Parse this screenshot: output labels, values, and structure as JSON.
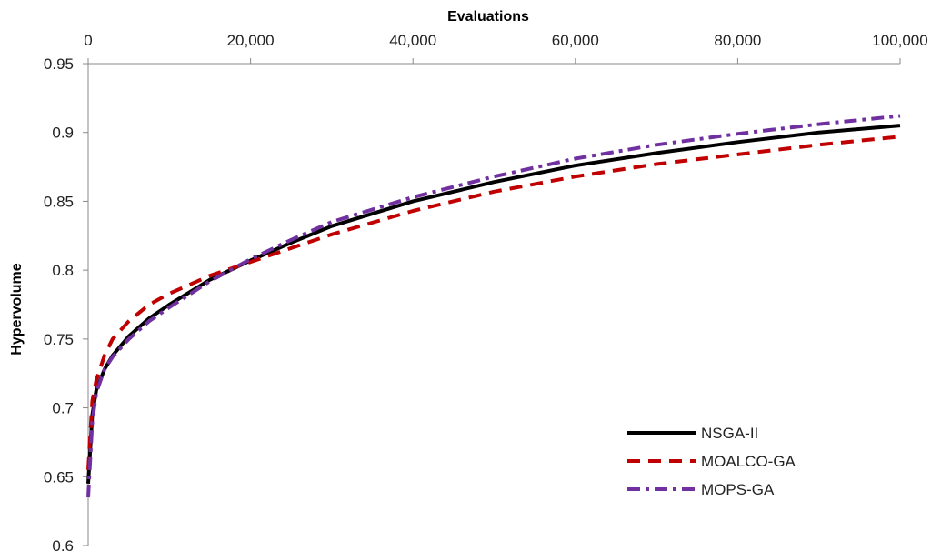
{
  "chart_data": {
    "type": "line",
    "title": "",
    "xlabel": "Evaluations",
    "ylabel": "Hypervolume",
    "xlim": [
      0,
      100000
    ],
    "ylim": [
      0.6,
      0.95
    ],
    "x_axis_position": "top",
    "grid": false,
    "legend_position": "bottom-right",
    "x_ticks": [
      0,
      20000,
      40000,
      60000,
      80000,
      100000
    ],
    "x_tick_labels": [
      "0",
      "20,000",
      "40,000",
      "60,000",
      "80,000",
      "100,000"
    ],
    "y_ticks": [
      0.6,
      0.65,
      0.7,
      0.75,
      0.8,
      0.85,
      0.9,
      0.95
    ],
    "y_tick_labels": [
      "0.6",
      "0.65",
      "0.7",
      "0.75",
      "0.8",
      "0.85",
      "0.9",
      "0.95"
    ],
    "x": [
      0,
      500,
      1000,
      2000,
      3000,
      5000,
      7500,
      10000,
      15000,
      20000,
      25000,
      30000,
      40000,
      50000,
      60000,
      70000,
      80000,
      90000,
      100000
    ],
    "series": [
      {
        "name": "NSGA-II",
        "color": "#000000",
        "dash": "solid",
        "values": [
          0.645,
          0.695,
          0.713,
          0.728,
          0.738,
          0.752,
          0.765,
          0.775,
          0.793,
          0.807,
          0.82,
          0.832,
          0.85,
          0.864,
          0.876,
          0.885,
          0.893,
          0.9,
          0.905
        ]
      },
      {
        "name": "MOALCO-GA",
        "color": "#c00000",
        "dash": "dash",
        "values": [
          0.655,
          0.705,
          0.72,
          0.738,
          0.75,
          0.763,
          0.775,
          0.783,
          0.796,
          0.806,
          0.816,
          0.826,
          0.843,
          0.857,
          0.868,
          0.877,
          0.884,
          0.891,
          0.897
        ]
      },
      {
        "name": "MOPS-GA",
        "color": "#7030a0",
        "dash": "dashdot",
        "values": [
          0.635,
          0.69,
          0.711,
          0.728,
          0.737,
          0.75,
          0.763,
          0.773,
          0.792,
          0.808,
          0.822,
          0.835,
          0.853,
          0.868,
          0.881,
          0.891,
          0.899,
          0.906,
          0.912
        ]
      }
    ]
  }
}
